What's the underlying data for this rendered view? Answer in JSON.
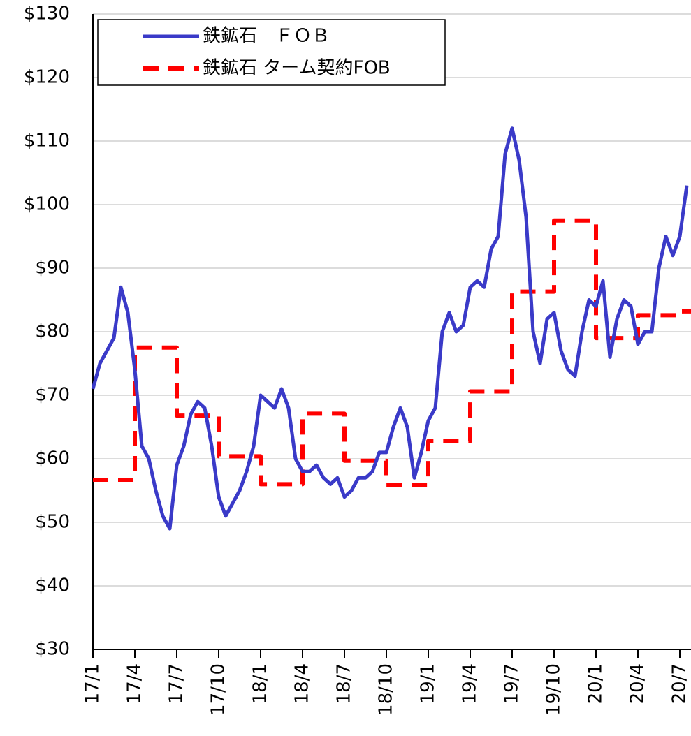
{
  "chart_data": {
    "type": "line",
    "categories": [
      "17/1",
      null,
      null,
      null,
      null,
      null,
      "17/4",
      null,
      null,
      null,
      null,
      null,
      "17/7",
      null,
      null,
      null,
      null,
      null,
      "17/10",
      null,
      null,
      null,
      null,
      null,
      "18/1",
      null,
      null,
      null,
      null,
      null,
      "18/4",
      null,
      null,
      null,
      null,
      null,
      "18/7",
      null,
      null,
      null,
      null,
      null,
      "18/10",
      null,
      null,
      null,
      null,
      null,
      "19/1",
      null,
      null,
      null,
      null,
      null,
      "19/4",
      null,
      null,
      null,
      null,
      null,
      "19/7",
      null,
      null,
      null,
      null,
      null,
      "19/10",
      null,
      null,
      null,
      null,
      null,
      "20/1",
      null,
      null,
      null,
      null,
      null,
      "20/4",
      null,
      null,
      null,
      null,
      null,
      "20/7",
      null
    ],
    "series": [
      {
        "name": "鉄鉱石　ＦＯＢ",
        "color": "#3a3ac8",
        "dashed": false,
        "step": false,
        "values": [
          71,
          75,
          77,
          79,
          87,
          83,
          74,
          62,
          60,
          55,
          51,
          49,
          59,
          62,
          67,
          69,
          68,
          62,
          54,
          51,
          53,
          55,
          58,
          62,
          70,
          69,
          68,
          71,
          68,
          60,
          58,
          58,
          59,
          57,
          56,
          57,
          54,
          55,
          57,
          57,
          58,
          61,
          61,
          65,
          68,
          65,
          57,
          61,
          66,
          68,
          80,
          83,
          80,
          81,
          87,
          88,
          87,
          93,
          95,
          108,
          112,
          107,
          98,
          80,
          75,
          82,
          83,
          77,
          74,
          73,
          80,
          85,
          84,
          88,
          76,
          82,
          85,
          84,
          78,
          80,
          80,
          90,
          95,
          92,
          95,
          103
        ]
      },
      {
        "name": "鉄鉱石 ターム契約FOB",
        "color": "#ff0000",
        "dashed": true,
        "step": true,
        "values": [
          56.7,
          56.7,
          56.7,
          56.7,
          56.7,
          56.7,
          77.5,
          77.5,
          77.5,
          77.5,
          77.5,
          77.5,
          66.8,
          66.8,
          66.8,
          66.8,
          66.8,
          66.8,
          60.4,
          60.4,
          60.4,
          60.4,
          60.4,
          60.4,
          56,
          56,
          56,
          56,
          56,
          56,
          67.1,
          67.1,
          67.1,
          67.1,
          67.1,
          67.1,
          59.7,
          59.7,
          59.7,
          59.7,
          59.7,
          59.7,
          55.9,
          55.9,
          55.9,
          55.9,
          55.9,
          55.9,
          62.8,
          62.8,
          62.8,
          62.8,
          62.8,
          62.8,
          70.6,
          70.6,
          70.6,
          70.6,
          70.6,
          70.6,
          86.3,
          86.3,
          86.3,
          86.3,
          86.3,
          86.3,
          97.5,
          97.5,
          97.5,
          97.5,
          97.5,
          97.5,
          79,
          79,
          79,
          79,
          79,
          79,
          82.6,
          82.6,
          82.6,
          82.6,
          82.6,
          82.6,
          83.2,
          83.2
        ]
      }
    ],
    "ylim": [
      30,
      130
    ],
    "yticks": [
      {
        "value": 30,
        "label": "$30"
      },
      {
        "value": 40,
        "label": "$40"
      },
      {
        "value": 50,
        "label": "$50"
      },
      {
        "value": 60,
        "label": "$60"
      },
      {
        "value": 70,
        "label": "$70"
      },
      {
        "value": 80,
        "label": "$80"
      },
      {
        "value": 90,
        "label": "$90"
      },
      {
        "value": 100,
        "label": "$100"
      },
      {
        "value": 110,
        "label": "$110"
      },
      {
        "value": 120,
        "label": "$120"
      },
      {
        "value": 130,
        "label": "$130"
      }
    ],
    "grid": true,
    "legend": "upper-left"
  }
}
